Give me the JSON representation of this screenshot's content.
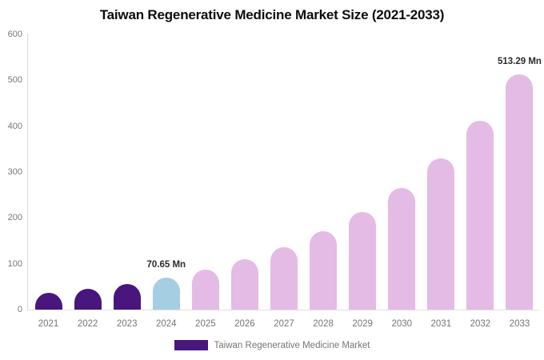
{
  "title": "Taiwan Regenerative Medicine Market Size (2021-2033)",
  "legend": {
    "label": "Taiwan Regenerative Medicine Market",
    "swatch_color": "#49167d"
  },
  "colors": {
    "historical_bar": "#49167d",
    "base_year_bar": "#a6cee3",
    "forecast_bar": "#e4bbe4",
    "axis_line": "#d9d9d9",
    "tick_text": "#757575",
    "title_text": "#0d0d0d",
    "data_label_text": "#2b2b2b"
  },
  "chart_data": {
    "type": "bar",
    "title": "Taiwan Regenerative Medicine Market Size (2021-2033)",
    "xlabel": "",
    "ylabel": "",
    "categories": [
      "2021",
      "2022",
      "2023",
      "2024",
      "2025",
      "2026",
      "2027",
      "2028",
      "2029",
      "2030",
      "2031",
      "2032",
      "2033"
    ],
    "values": [
      36.5,
      45.5,
      56.7,
      70.65,
      88.1,
      109.8,
      136.8,
      170.6,
      212.6,
      265.0,
      330.4,
      411.8,
      513.29
    ],
    "bar_colors": [
      "#49167d",
      "#49167d",
      "#49167d",
      "#a6cee3",
      "#e4bbe4",
      "#e4bbe4",
      "#e4bbe4",
      "#e4bbe4",
      "#e4bbe4",
      "#e4bbe4",
      "#e4bbe4",
      "#e4bbe4",
      "#e4bbe4"
    ],
    "value_labels": [
      null,
      null,
      null,
      "70.65 Mn",
      null,
      null,
      null,
      null,
      null,
      null,
      null,
      null,
      "513.29 Mn"
    ],
    "unit": "Mn",
    "ylim": [
      0,
      600
    ],
    "yticks": [
      0,
      100,
      200,
      300,
      400,
      500,
      600
    ],
    "grid": false,
    "legend_entries": [
      "Taiwan Regenerative Medicine Market"
    ],
    "legend_position": "bottom"
  }
}
